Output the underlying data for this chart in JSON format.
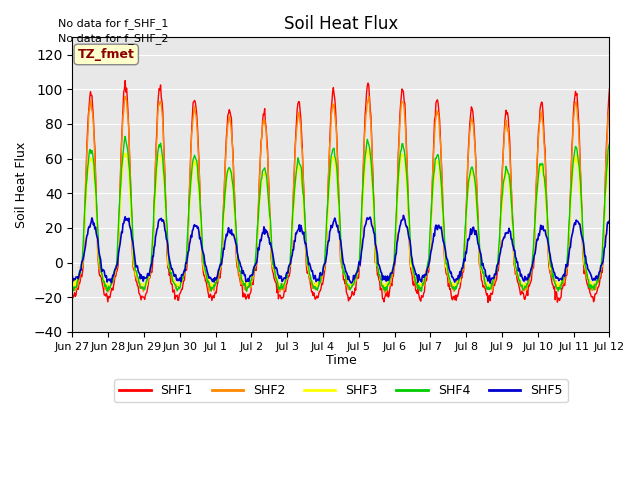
{
  "title": "Soil Heat Flux",
  "ylabel": "Soil Heat Flux",
  "xlabel": "Time",
  "annotation_lines": [
    "No data for f_SHF_1",
    "No data for f_SHF_2"
  ],
  "tz_label": "TZ_fmet",
  "ylim": [
    -40,
    130
  ],
  "yticks": [
    -40,
    -20,
    0,
    20,
    40,
    60,
    80,
    100,
    120
  ],
  "background_color": "#e8e8e8",
  "series_colors": {
    "SHF1": "#ff0000",
    "SHF2": "#ff8800",
    "SHF3": "#ffff00",
    "SHF4": "#00cc00",
    "SHF5": "#0000cc"
  },
  "x_tick_labels": [
    "Jun 27",
    "Jun 28",
    "Jun 29",
    "Jun 30",
    "Jul 1",
    "Jul 2",
    "Jul 3",
    "Jul 4",
    "Jul 5",
    "Jul 6",
    "Jul 7",
    "Jul 8",
    "Jul 9",
    "Jul 10",
    "Jul 11",
    "Jul 12"
  ],
  "n_days": 15.5,
  "samples_per_day": 48
}
